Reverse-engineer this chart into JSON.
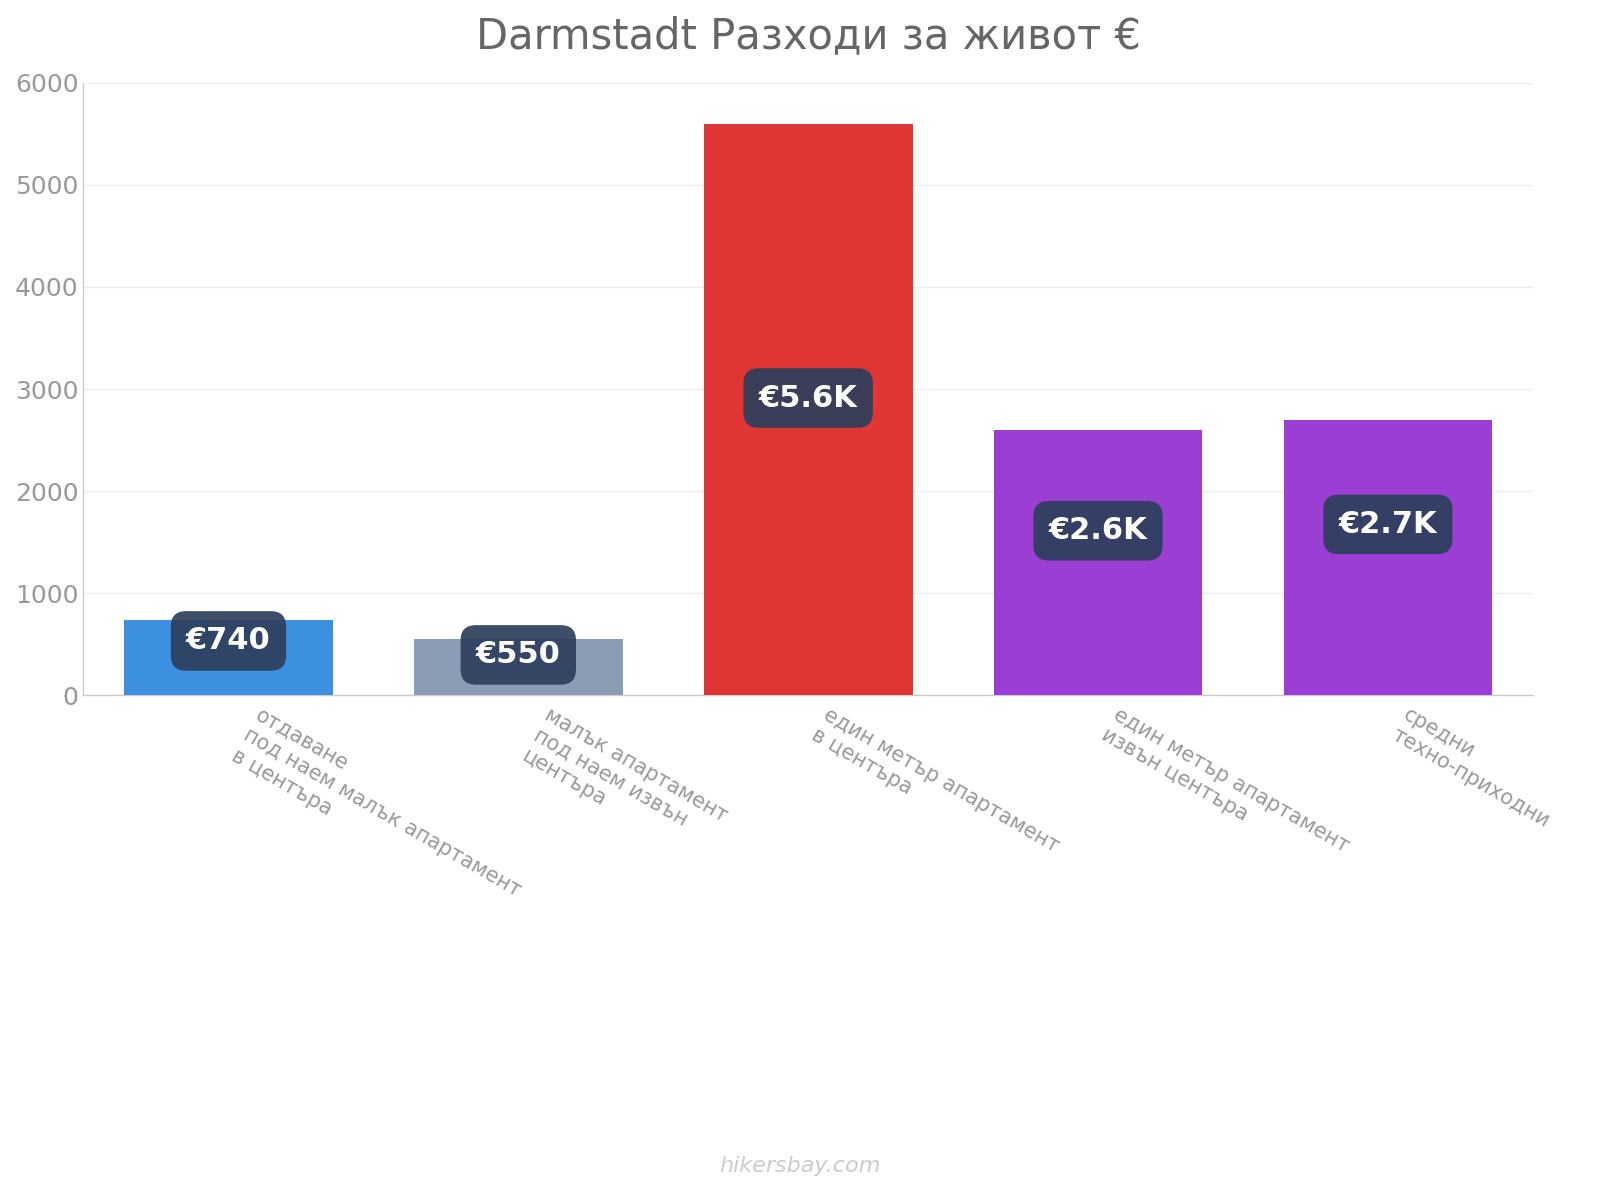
{
  "title": "Darmstadt Разходи за живот €",
  "categories": [
    "отдаване\nпод наем малък апартамент\nв центъра",
    "малък апартамент\nпод наем извън\nцентъра",
    "един метър апартамент\nв центъра",
    "един метър апартамент\nизвън центъра",
    "средни\nтехно-приходни"
  ],
  "values": [
    740,
    550,
    5600,
    2600,
    2700
  ],
  "bar_colors": [
    "#3d8fe0",
    "#8a9db5",
    "#e03535",
    "#9b3fd4",
    "#9b3fd4"
  ],
  "label_texts": [
    "€740",
    "€550",
    "€5.6K",
    "€2.6K",
    "€2.7K"
  ],
  "label_bg_color": "#2d3f5c",
  "label_text_color": "#ffffff",
  "ylim": [
    0,
    6000
  ],
  "yticks": [
    0,
    1000,
    2000,
    3000,
    4000,
    5000,
    6000
  ],
  "title_fontsize": 30,
  "tick_fontsize": 18,
  "label_fontsize": 22,
  "xtick_fontsize": 15,
  "watermark": "hikersbay.com",
  "background_color": "#ffffff"
}
